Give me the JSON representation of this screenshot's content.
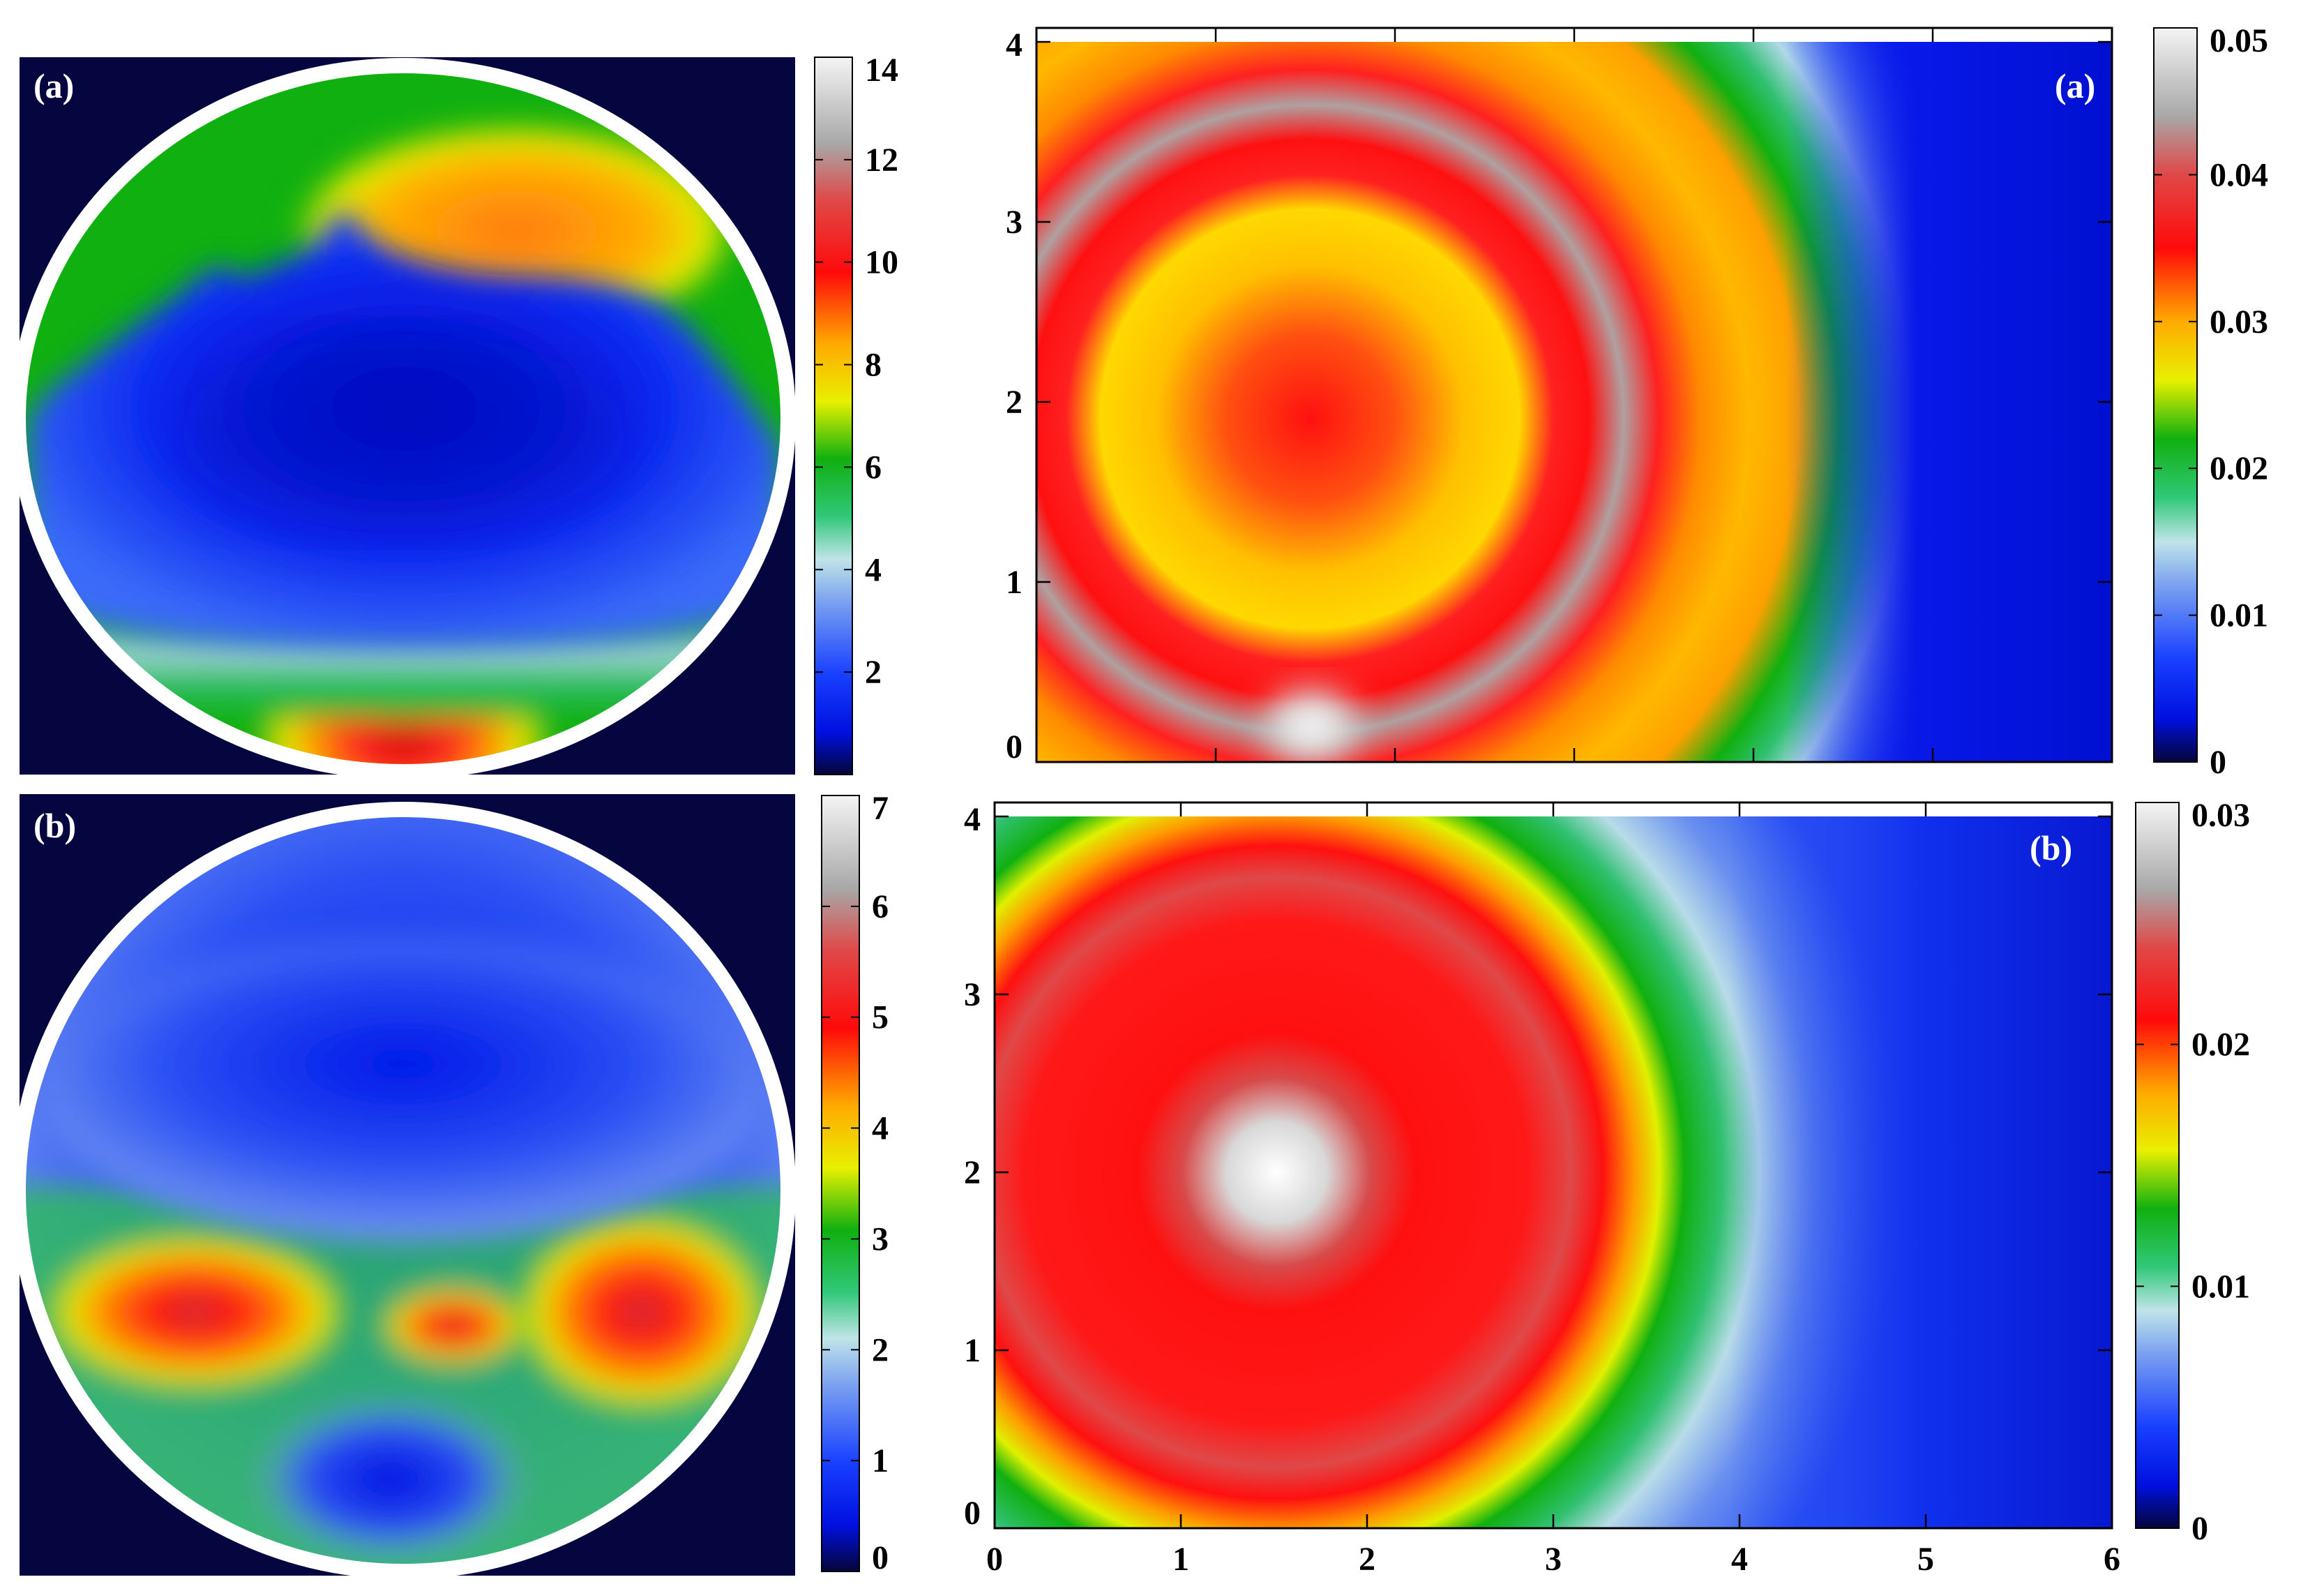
{
  "chart_data": [
    {
      "type": "heatmap",
      "panel_label": "(a)",
      "shape": "circular cross-section",
      "background_color": "#050540",
      "colormap": [
        "#05053a",
        "#0018ff",
        "#6a90f0",
        "#b8d8e8",
        "#20c060",
        "#10b010",
        "#e8f000",
        "#ff9a00",
        "#ff0a0a",
        "#c8c8c8",
        "#ffffff"
      ],
      "colorbar": {
        "min": 0,
        "max": 14,
        "ticks": [
          "2",
          "4",
          "6",
          "8",
          "10",
          "12",
          "14"
        ]
      }
    },
    {
      "type": "heatmap",
      "panel_label": "(b)",
      "shape": "circular cross-section",
      "background_color": "#050540",
      "colormap": [
        "#05053a",
        "#0018ff",
        "#6a90f0",
        "#b8d8e8",
        "#20c060",
        "#10b010",
        "#e8f000",
        "#ff9a00",
        "#ff0a0a",
        "#c8c8c8",
        "#ffffff"
      ],
      "colorbar": {
        "min": 0,
        "max": 7,
        "ticks": [
          "0",
          "1",
          "2",
          "3",
          "4",
          "5",
          "6",
          "7"
        ]
      }
    },
    {
      "type": "heatmap",
      "panel_label": "(a)",
      "xlim": [
        0,
        6
      ],
      "ylim": [
        0,
        4
      ],
      "yticks": [
        "0",
        "1",
        "2",
        "3",
        "4"
      ],
      "colorbar": {
        "min": 0,
        "max": 0.05,
        "ticks": [
          "0",
          "0.01",
          "0.02",
          "0.03",
          "0.04",
          "0.05"
        ]
      }
    },
    {
      "type": "heatmap",
      "panel_label": "(b)",
      "xlim": [
        0,
        6
      ],
      "ylim": [
        0,
        4
      ],
      "xticks": [
        "0",
        "1",
        "2",
        "3",
        "4",
        "5",
        "6"
      ],
      "yticks": [
        "0",
        "1",
        "2",
        "3",
        "4"
      ],
      "colorbar": {
        "min": 0,
        "max": 0.03,
        "ticks": [
          "0",
          "0.01",
          "0.02",
          "0.03"
        ]
      }
    }
  ]
}
